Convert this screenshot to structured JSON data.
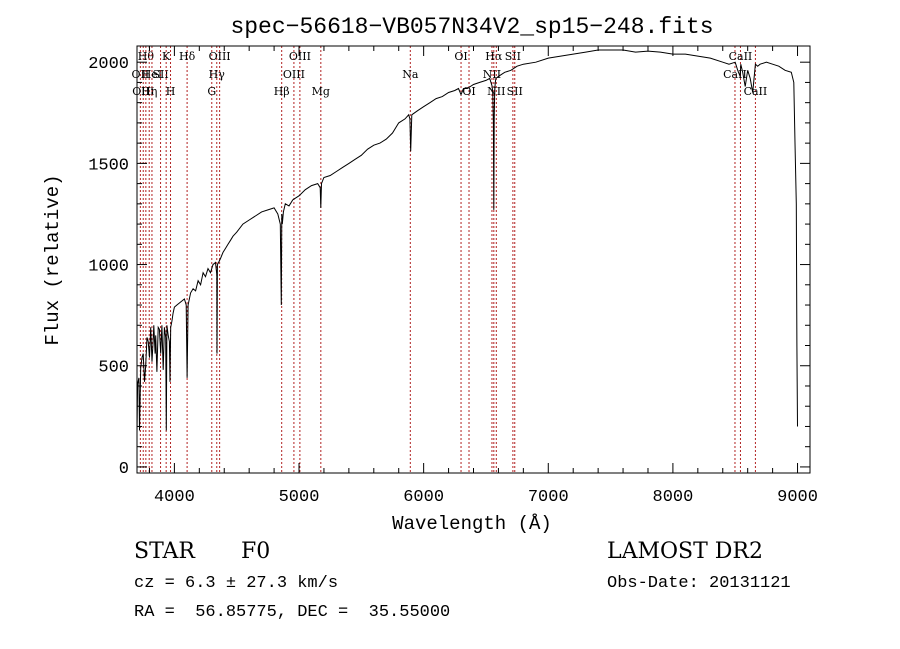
{
  "chart_data": {
    "type": "line",
    "title": "spec−56618−VB057N34V2_sp15−248.fits",
    "xlabel": "Wavelength (Å)",
    "ylabel": "Flux (relative)",
    "xlim": [
      3700,
      9100
    ],
    "ylim": [
      -30,
      2080
    ],
    "x_ticks": [
      4000,
      5000,
      6000,
      7000,
      8000,
      9000
    ],
    "y_ticks": [
      0,
      500,
      1000,
      1500,
      2000
    ],
    "x_tick_labels": [
      "4000",
      "5000",
      "6000",
      "7000",
      "8000",
      "9000"
    ],
    "y_tick_labels": [
      "0",
      "500",
      "1000",
      "1500",
      "2000"
    ],
    "grid": false,
    "line_color": "#000000",
    "marker_line_color": "#b22222",
    "series": [
      {
        "x": [
          3700,
          3705,
          3715,
          3720,
          3730,
          3740,
          3750,
          3760,
          3770,
          3780,
          3790,
          3800,
          3810,
          3820,
          3830,
          3835,
          3845,
          3850,
          3860,
          3870,
          3880,
          3890,
          3900,
          3910,
          3920,
          3930,
          3935,
          3940,
          3950,
          3960,
          3965,
          3970,
          3980,
          3990,
          4000,
          4020,
          4040,
          4060,
          4080,
          4095,
          4102,
          4110,
          4130,
          4150,
          4170,
          4190,
          4210,
          4230,
          4250,
          4270,
          4290,
          4310,
          4330,
          4340,
          4342,
          4345,
          4355,
          4370,
          4390,
          4410,
          4430,
          4450,
          4470,
          4500,
          4550,
          4600,
          4650,
          4700,
          4750,
          4800,
          4830,
          4850,
          4858,
          4862,
          4866,
          4875,
          4890,
          4920,
          4950,
          5000,
          5050,
          5100,
          5150,
          5170,
          5175,
          5180,
          5200,
          5250,
          5300,
          5350,
          5400,
          5450,
          5500,
          5550,
          5600,
          5650,
          5700,
          5750,
          5800,
          5850,
          5880,
          5890,
          5896,
          5905,
          5950,
          6000,
          6050,
          6100,
          6150,
          6200,
          6250,
          6280,
          6300,
          6320,
          6350,
          6400,
          6450,
          6500,
          6530,
          6550,
          6555,
          6560,
          6563,
          6566,
          6570,
          6575,
          6580,
          6600,
          6650,
          6700,
          6750,
          6800,
          6900,
          7000,
          7100,
          7200,
          7300,
          7400,
          7500,
          7600,
          7700,
          7800,
          7900,
          8000,
          8100,
          8200,
          8300,
          8400,
          8450,
          8500,
          8520,
          8540,
          8545,
          8560,
          8580,
          8600,
          8620,
          8640,
          8662,
          8680,
          8700,
          8750,
          8800,
          8850,
          8900,
          8950,
          8970,
          8980,
          8990,
          8995,
          9000
        ],
        "y": [
          170,
          410,
          440,
          180,
          490,
          540,
          560,
          420,
          500,
          640,
          620,
          540,
          690,
          520,
          630,
          700,
          560,
          650,
          470,
          690,
          680,
          560,
          700,
          480,
          690,
          640,
          180,
          700,
          650,
          620,
          420,
          690,
          720,
          760,
          790,
          800,
          810,
          820,
          830,
          800,
          440,
          800,
          860,
          880,
          870,
          920,
          900,
          960,
          940,
          980,
          960,
          1000,
          1010,
          950,
          560,
          1000,
          1010,
          1030,
          1060,
          1080,
          1100,
          1120,
          1140,
          1160,
          1200,
          1220,
          1240,
          1260,
          1270,
          1280,
          1250,
          1200,
          800,
          1250,
          1200,
          1260,
          1300,
          1290,
          1320,
          1340,
          1370,
          1390,
          1400,
          1380,
          1280,
          1400,
          1430,
          1440,
          1460,
          1480,
          1500,
          1520,
          1540,
          1570,
          1590,
          1600,
          1620,
          1650,
          1700,
          1720,
          1740,
          1720,
          1560,
          1740,
          1760,
          1780,
          1800,
          1820,
          1830,
          1850,
          1860,
          1870,
          1840,
          1870,
          1870,
          1890,
          1900,
          1910,
          1920,
          1880,
          1840,
          1700,
          1270,
          1720,
          1860,
          1900,
          1920,
          1930,
          1950,
          1960,
          1980,
          1990,
          2000,
          2020,
          2030,
          2040,
          2050,
          2060,
          2060,
          2060,
          2050,
          2055,
          2050,
          2040,
          2040,
          2030,
          2020,
          2000,
          1990,
          2000,
          1960,
          1930,
          1990,
          1950,
          1880,
          1960,
          1920,
          1850,
          1990,
          1980,
          1990,
          2000,
          1990,
          1980,
          1960,
          1950,
          1900,
          1600,
          1300,
          600,
          200
        ]
      }
    ],
    "line_markers": [
      {
        "x": 3727,
        "label": "OII",
        "row": 1
      },
      {
        "x": 3750,
        "label": "OIII",
        "row": 2
      },
      {
        "x": 3771,
        "label": "Hθ",
        "row": 0
      },
      {
        "x": 3798,
        "label": "Hη",
        "row": 2
      },
      {
        "x": 3820,
        "label": "HeI",
        "row": 1
      },
      {
        "x": 3889,
        "label": "SII",
        "row": 1
      },
      {
        "x": 3934,
        "label": "K",
        "row": 0
      },
      {
        "x": 3969,
        "label": "H",
        "row": 2
      },
      {
        "x": 4102,
        "label": "Hδ",
        "row": 0
      },
      {
        "x": 4300,
        "label": "G",
        "row": 2
      },
      {
        "x": 4340,
        "label": "Hγ",
        "row": 1
      },
      {
        "x": 4363,
        "label": "OIII",
        "row": 0
      },
      {
        "x": 4861,
        "label": "Hβ",
        "row": 2
      },
      {
        "x": 4959,
        "label": "OIII",
        "row": 1
      },
      {
        "x": 5007,
        "label": "OIII",
        "row": 0
      },
      {
        "x": 5175,
        "label": "Mg",
        "row": 2
      },
      {
        "x": 5893,
        "label": "Na",
        "row": 1
      },
      {
        "x": 6300,
        "label": "OI",
        "row": 0
      },
      {
        "x": 6364,
        "label": "OI",
        "row": 2
      },
      {
        "x": 6548,
        "label": "NII",
        "row": 1
      },
      {
        "x": 6563,
        "label": "Hα",
        "row": 0
      },
      {
        "x": 6583,
        "label": "NII",
        "row": 2
      },
      {
        "x": 6716,
        "label": "SII",
        "row": 0
      },
      {
        "x": 6731,
        "label": "SII",
        "row": 2
      },
      {
        "x": 8498,
        "label": "CaII",
        "row": 1
      },
      {
        "x": 8542,
        "label": "CaII",
        "row": 0
      },
      {
        "x": 8662,
        "label": "CaII",
        "row": 2
      }
    ]
  },
  "info": {
    "class": "STAR",
    "subclass": "F0",
    "survey": "LAMOST DR2",
    "cz": "cz = 6.3 ± 27.3 km/s",
    "obs_date": "Obs-Date: 20131121",
    "coords": "RA =  56.85775, DEC =  35.55000"
  }
}
